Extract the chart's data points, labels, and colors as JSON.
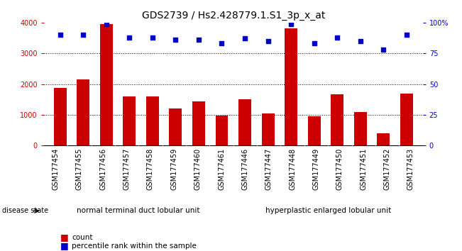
{
  "title": "GDS2739 / Hs2.428779.1.S1_3p_x_at",
  "categories": [
    "GSM177454",
    "GSM177455",
    "GSM177456",
    "GSM177457",
    "GSM177458",
    "GSM177459",
    "GSM177460",
    "GSM177461",
    "GSM177446",
    "GSM177447",
    "GSM177448",
    "GSM177449",
    "GSM177450",
    "GSM177451",
    "GSM177452",
    "GSM177453"
  ],
  "bar_values": [
    1880,
    2150,
    3950,
    1600,
    1610,
    1200,
    1440,
    980,
    1510,
    1040,
    3820,
    960,
    1670,
    1080,
    400,
    1680
  ],
  "percentile_values": [
    90,
    90,
    99,
    88,
    88,
    86,
    86,
    83,
    87,
    85,
    99,
    83,
    88,
    85,
    78,
    90
  ],
  "bar_color": "#cc0000",
  "dot_color": "#0000cc",
  "ylim_left": [
    0,
    4000
  ],
  "ylim_right": [
    0,
    100
  ],
  "yticks_left": [
    0,
    1000,
    2000,
    3000,
    4000
  ],
  "ytick_labels_right": [
    "0",
    "25",
    "50",
    "75",
    "100%"
  ],
  "yticks_right": [
    0,
    25,
    50,
    75,
    100
  ],
  "group1_label": "normal terminal duct lobular unit",
  "group2_label": "hyperplastic enlarged lobular unit",
  "group1_count": 8,
  "group2_count": 8,
  "disease_state_label": "disease state",
  "legend_count_label": "count",
  "legend_pct_label": "percentile rank within the sample",
  "bar_color_hex": "#cc0000",
  "dot_color_hex": "#0000cc",
  "tick_label_color_left": "#cc0000",
  "tick_label_color_right": "#0000cc",
  "title_fontsize": 10,
  "tick_fontsize": 7,
  "bar_width": 0.55,
  "xtick_gray": "#c8c8c8",
  "group_green": "#90ee90",
  "dot_size": 22
}
